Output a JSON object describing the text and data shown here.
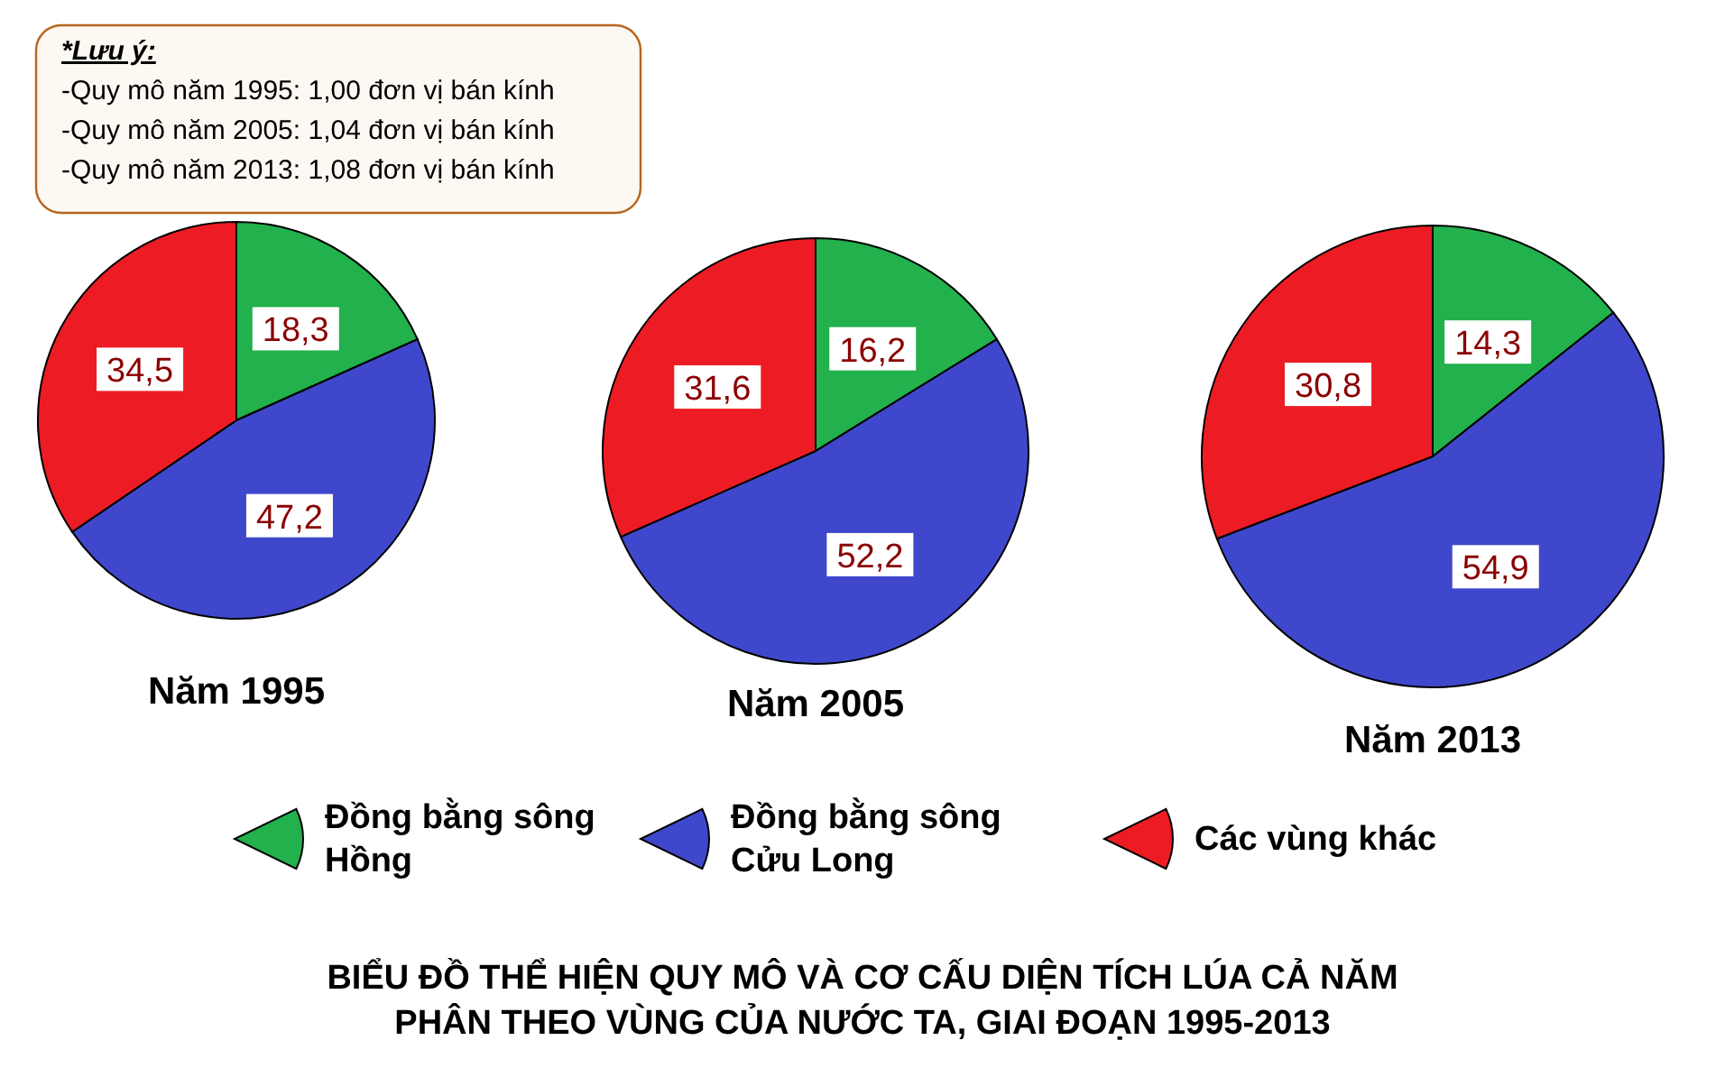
{
  "chart_data": [
    {
      "type": "pie",
      "title": "Năm 1995",
      "categories": [
        "Đồng bằng sông Hồng",
        "Đồng bằng sông Cửu Long",
        "Các vùng khác"
      ],
      "values": [
        18.3,
        47.2,
        34.5
      ],
      "value_labels": [
        "18,3",
        "47,2",
        "34,5"
      ],
      "colors": [
        "#22b14c",
        "#3f48cc",
        "#ed1c24"
      ],
      "legend": "bottom"
    },
    {
      "type": "pie",
      "title": "Năm 2005",
      "values": [
        16.2,
        52.2,
        31.6
      ],
      "value_labels": [
        "16,2",
        "52,2",
        "31,6"
      ],
      "colors": [
        "#22b14c",
        "#3f48cc",
        "#ed1c24"
      ]
    },
    {
      "type": "pie",
      "title": "Năm 2013",
      "values": [
        14.3,
        54.9,
        30.8
      ],
      "value_labels": [
        "14,3",
        "54,9",
        "30,8"
      ],
      "colors": [
        "#22b14c",
        "#3f48cc",
        "#ed1c24"
      ]
    },
    {
      "type": "other",
      "title": "BIỂU ĐỒ THỂ HIỆN QUY MÔ VÀ CƠ CẤU DIỆN TÍCH LÚA CẢ NĂM PHÂN THEO VÙNG CỦA NƯỚC TA, GIAI ĐOẠN 1995-2013",
      "annotations": [
        "*Lưu ý:",
        "-Quy mô năm 1995: 1,00 đơn vị bán kính",
        "-Quy mô năm 2005: 1,04 đơn vị bán kính",
        "-Quy mô năm 2013: 1,08 đơn vị bán kính"
      ]
    }
  ]
}
